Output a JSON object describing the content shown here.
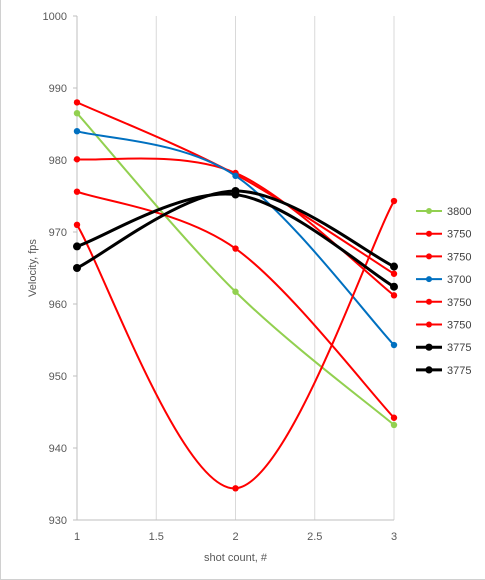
{
  "chart_data": {
    "type": "line",
    "xlabel": "shot count, #",
    "ylabel": "Velocity, fps",
    "xlim": [
      1,
      3
    ],
    "ylim": [
      930,
      1000
    ],
    "xticks": [
      "1",
      "1.5",
      "2",
      "2.5",
      "3"
    ],
    "yticks": [
      "930",
      "940",
      "950",
      "960",
      "970",
      "980",
      "990",
      "1000"
    ],
    "grid": "vertical",
    "legend_position": "right",
    "smooth": true,
    "series": [
      {
        "name": "3800",
        "color": "#92d050",
        "width": 2,
        "x": [
          1,
          2,
          3
        ],
        "values": [
          986.5,
          961.7,
          943.2
        ]
      },
      {
        "name": "3750",
        "color": "#ff0000",
        "width": 2,
        "x": [
          1,
          2,
          3
        ],
        "values": [
          988.0,
          978.0,
          964.2
        ]
      },
      {
        "name": "3750",
        "color": "#ff0000",
        "width": 2,
        "x": [
          1,
          2,
          3
        ],
        "values": [
          980.1,
          978.2,
          961.2
        ]
      },
      {
        "name": "3700",
        "color": "#0070c0",
        "width": 2,
        "x": [
          1,
          2,
          3
        ],
        "values": [
          984.0,
          977.8,
          954.3
        ]
      },
      {
        "name": "3750",
        "color": "#ff0000",
        "width": 2,
        "x": [
          1,
          2,
          3
        ],
        "values": [
          975.6,
          967.7,
          944.2
        ]
      },
      {
        "name": "3750",
        "color": "#ff0000",
        "width": 2,
        "x": [
          1,
          2,
          3
        ],
        "values": [
          971.0,
          934.4,
          974.3
        ]
      },
      {
        "name": "3775",
        "color": "#000000",
        "width": 3,
        "x": [
          1,
          2,
          3
        ],
        "values": [
          968.0,
          975.2,
          962.4
        ]
      },
      {
        "name": "3775",
        "color": "#000000",
        "width": 3,
        "x": [
          1,
          2,
          3
        ],
        "values": [
          965.0,
          975.7,
          965.2
        ]
      }
    ]
  }
}
